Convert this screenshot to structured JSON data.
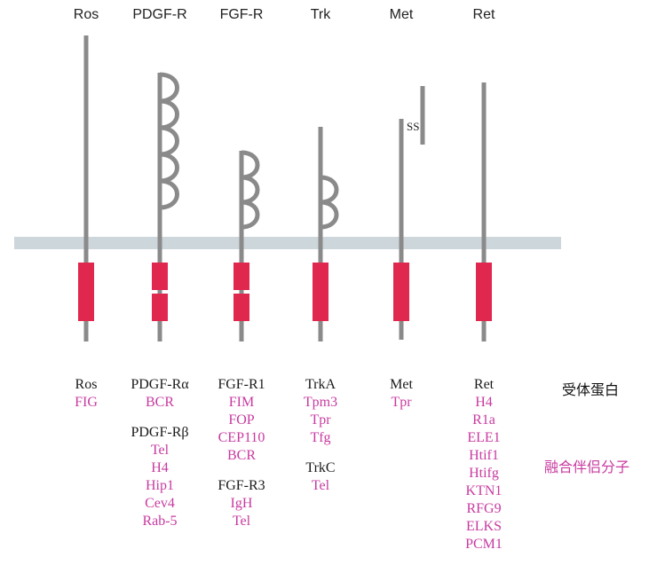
{
  "receptors": [
    {
      "header": "Ros",
      "groups": [
        {
          "name": "Ros",
          "partners": [
            "FIG"
          ]
        }
      ]
    },
    {
      "header": "PDGF-R",
      "groups": [
        {
          "name": "PDGF-Rα",
          "partners": [
            "BCR"
          ]
        },
        {
          "name": "PDGF-Rβ",
          "partners": [
            "Tel",
            "H4",
            "Hip1",
            "Cev4",
            "Rab-5"
          ]
        }
      ]
    },
    {
      "header": "FGF-R",
      "groups": [
        {
          "name": "FGF-R1",
          "partners": [
            "FIM",
            "FOP",
            "CEP110",
            "BCR"
          ]
        },
        {
          "name": "FGF-R3",
          "partners": [
            "IgH",
            "Tel"
          ]
        }
      ]
    },
    {
      "header": "Trk",
      "groups": [
        {
          "name": "TrkA",
          "partners": [
            "Tpm3",
            "Tpr",
            "Tfg"
          ]
        },
        {
          "name": "TrkC",
          "partners": [
            "Tel"
          ]
        }
      ]
    },
    {
      "header": "Met",
      "groups": [
        {
          "name": "Met",
          "partners": [
            "Tpr"
          ]
        }
      ]
    },
    {
      "header": "Ret",
      "groups": [
        {
          "name": "Ret",
          "partners": [
            "H4",
            "R1a",
            "ELE1",
            "Htif1",
            "Htifg",
            "KTN1",
            "RFG9",
            "ELKS",
            "PCM1"
          ]
        }
      ]
    }
  ],
  "met_disulfide_label": "SS",
  "legend": {
    "receptor": "受体蛋白",
    "fusion_partner": "融合伴侣分子"
  },
  "colors": {
    "membrane": "#cdd6da",
    "stem": "#8a8a8a",
    "kinase": "#e0284f",
    "receptor_text": "#1a1a1a",
    "partner_text": "#c83aa0"
  }
}
